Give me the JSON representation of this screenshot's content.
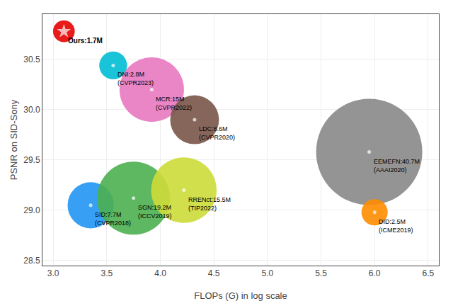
{
  "chart_data": {
    "type": "bubble",
    "x": [
      3.1,
      3.56,
      3.92,
      4.32,
      5.95,
      3.35,
      3.75,
      4.22,
      6.0
    ],
    "values": [
      30.78,
      30.44,
      30.2,
      29.9,
      29.58,
      29.05,
      29.12,
      29.2,
      28.98
    ],
    "sizes": [
      1.7,
      2.8,
      15.0,
      8.6,
      40.7,
      7.7,
      19.2,
      15.5,
      2.5
    ],
    "colors": [
      "#e81a1a",
      "#00bcd4",
      "#e878c0",
      "#795548",
      "#888888",
      "#2196f3",
      "#4caf50",
      "#cddc39",
      "#ff8c00"
    ],
    "markers": [
      "star",
      "circle",
      "circle",
      "circle",
      "circle",
      "circle",
      "circle",
      "circle",
      "circle"
    ],
    "labels": [
      "Ours:1.7M",
      "DNI:2.8M\n(CVPR2023)",
      "MCR:15M\n(CVPR2022)",
      "LDC:8.6M\n(CVPR2020)",
      "EEMEFN:40.7M\n(AAAI2020)",
      "SID:7.7M\n(CVPR2018)",
      "SGN:19.2M\n(ICCV2019)",
      "RRENct:15.5M\n(TIP2022)",
      "DID:2.5M\n(ICME2019)"
    ],
    "xlabel": "FLOPs (G) in log scale",
    "ylabel": "PSNR on SID-Sony",
    "xlim": [
      2.9,
      6.6
    ],
    "ylim": [
      28.45,
      30.95
    ],
    "xticks": [
      {
        "value": 3,
        "label": "3.0"
      },
      3.5,
      {
        "value": 4,
        "label": "4.0"
      },
      4.5,
      {
        "value": 5,
        "label": "5.0"
      },
      5.5,
      {
        "value": 6,
        "label": "6.0"
      },
      6.5
    ],
    "yticks": [
      28.5,
      {
        "value": 29,
        "label": "29.0"
      },
      29.5,
      {
        "value": 30,
        "label": "30.0"
      },
      30.5
    ],
    "grid": true
  }
}
